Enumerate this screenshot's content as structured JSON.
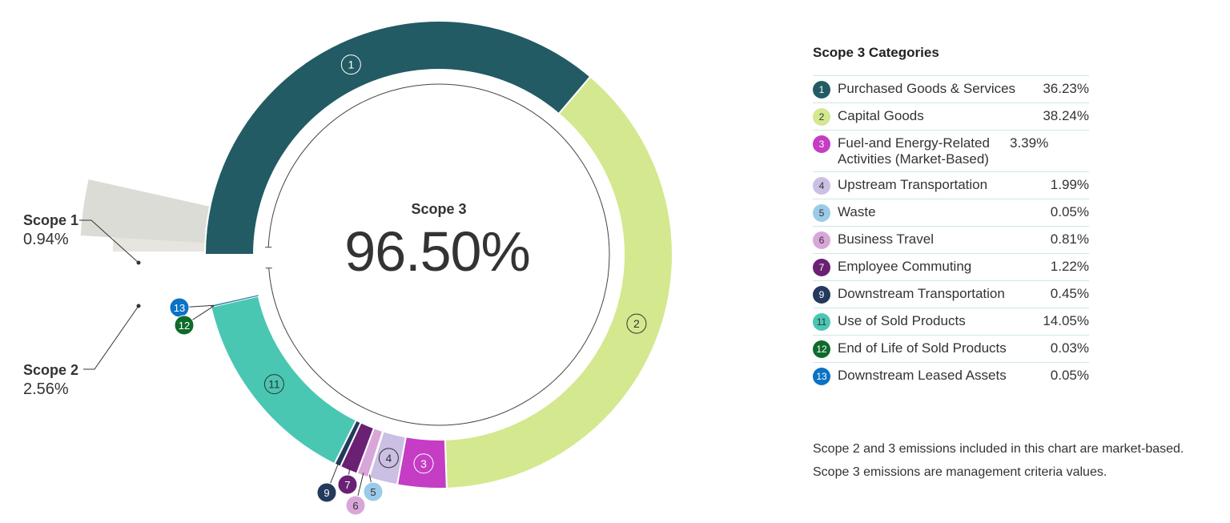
{
  "chart_data": {
    "type": "pie",
    "center_label": "Scope 3",
    "center_value": "96.50%",
    "scopes": [
      {
        "name": "Scope 1",
        "value": 0.94,
        "value_label": "0.94%",
        "color": "#e6e5e0"
      },
      {
        "name": "Scope 2",
        "value": 2.56,
        "value_label": "2.56%",
        "color": "#dcdcd7"
      },
      {
        "name": "Scope 3",
        "value": 96.5,
        "value_label": "96.50%"
      }
    ],
    "legend_title": "Scope 3 Categories",
    "categories": [
      {
        "id": "1",
        "label": "Purchased Goods & Services",
        "value": 36.23,
        "value_label": "36.23%",
        "color": "#225b63",
        "text_color": "#ffffff"
      },
      {
        "id": "2",
        "label": "Capital Goods",
        "value": 38.24,
        "value_label": "38.24%",
        "color": "#d4e88f",
        "text_color": "#333333"
      },
      {
        "id": "3",
        "label": "Fuel-and Energy-Related Activities (Market-Based)",
        "value": 3.39,
        "value_label": "3.39%",
        "color": "#c43dc4",
        "text_color": "#ffffff"
      },
      {
        "id": "4",
        "label": "Upstream Transportation",
        "value": 1.99,
        "value_label": "1.99%",
        "color": "#cbbfe3",
        "text_color": "#333333"
      },
      {
        "id": "5",
        "label": "Waste",
        "value": 0.05,
        "value_label": "0.05%",
        "color": "#9bcbe8",
        "text_color": "#333333"
      },
      {
        "id": "6",
        "label": "Business Travel",
        "value": 0.81,
        "value_label": "0.81%",
        "color": "#d9a6d9",
        "text_color": "#333333"
      },
      {
        "id": "7",
        "label": "Employee Commuting",
        "value": 1.22,
        "value_label": "1.22%",
        "color": "#6a2073",
        "text_color": "#ffffff"
      },
      {
        "id": "9",
        "label": "Downstream Transportation",
        "value": 0.45,
        "value_label": "0.45%",
        "color": "#23395d",
        "text_color": "#ffffff"
      },
      {
        "id": "11",
        "label": "Use of Sold Products",
        "value": 14.05,
        "value_label": "14.05%",
        "color": "#49c7b2",
        "text_color": "#333333"
      },
      {
        "id": "12",
        "label": "End of Life of Sold Products",
        "value": 0.03,
        "value_label": "0.03%",
        "color": "#0e6b2a",
        "text_color": "#ffffff"
      },
      {
        "id": "13",
        "label": "Downstream Leased Assets",
        "value": 0.05,
        "value_label": "0.05%",
        "color": "#0b72c4",
        "text_color": "#ffffff"
      }
    ],
    "notes": [
      "Scope 2 and 3 emissions included in this chart are market-based.",
      "Scope 3 emissions are management criteria values."
    ]
  }
}
